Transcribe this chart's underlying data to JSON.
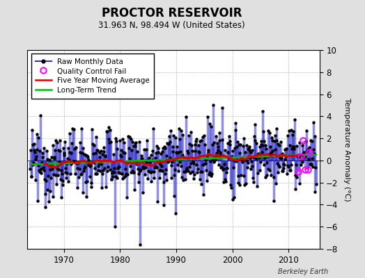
{
  "title": "PROCTOR RESERVOIR",
  "subtitle": "31.963 N, 98.494 W (United States)",
  "ylabel": "Temperature Anomaly (°C)",
  "credit": "Berkeley Earth",
  "xlim": [
    1963.5,
    2015.5
  ],
  "ylim": [
    -8,
    10
  ],
  "yticks": [
    -8,
    -6,
    -4,
    -2,
    0,
    2,
    4,
    6,
    8,
    10
  ],
  "xticks": [
    1970,
    1980,
    1990,
    2000,
    2010
  ],
  "start_year": 1964,
  "end_year": 2014,
  "background_color": "#e0e0e0",
  "plot_bg_color": "#ffffff",
  "raw_line_color": "#3333cc",
  "raw_marker_color": "#000000",
  "ma_color": "#dd0000",
  "trend_color": "#00bb00",
  "qc_color": "#ff00ff",
  "seed": 12345
}
